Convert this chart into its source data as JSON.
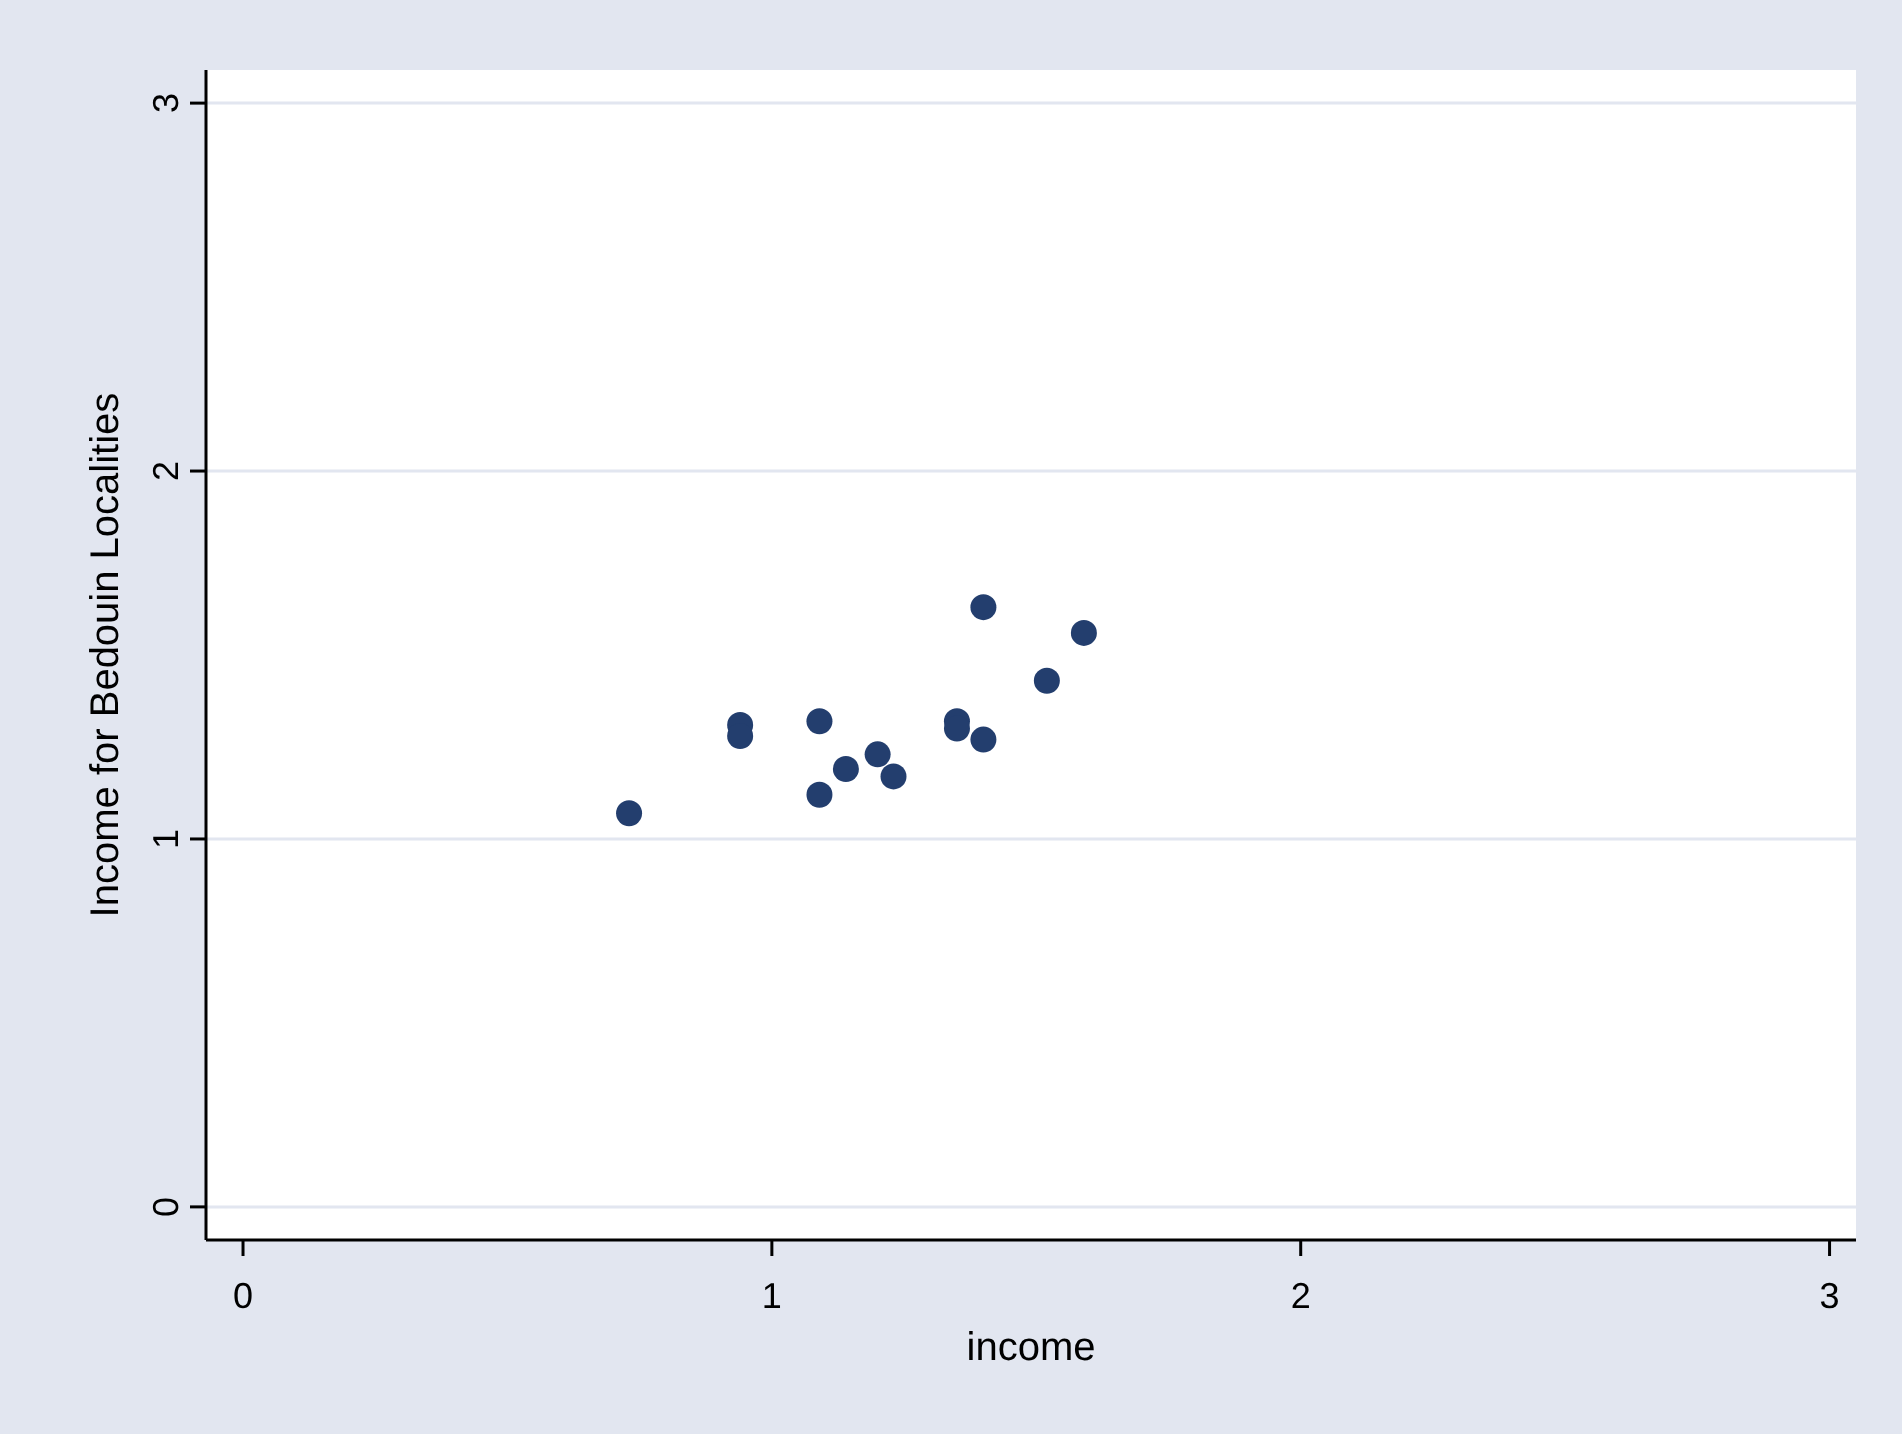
{
  "chart_data": {
    "type": "scatter",
    "xlabel": "income",
    "ylabel": "Income for Bedouin Localities",
    "x": [
      0.73,
      0.94,
      0.94,
      1.09,
      1.09,
      1.14,
      1.2,
      1.23,
      1.35,
      1.35,
      1.4,
      1.4,
      1.52,
      1.59
    ],
    "series": [
      {
        "color": "#233e6e",
        "values": [
          1.07,
          1.31,
          1.28,
          1.32,
          1.12,
          1.19,
          1.23,
          1.17,
          1.32,
          1.3,
          1.27,
          1.63,
          1.43,
          1.56
        ]
      }
    ],
    "xlim": [
      -0.07,
      3.05
    ],
    "ylim": [
      -0.09,
      3.09
    ],
    "xticks": [
      0,
      1,
      2,
      3
    ],
    "yticks": [
      0,
      1,
      2,
      3
    ],
    "grid": "y",
    "marker": "circle"
  }
}
